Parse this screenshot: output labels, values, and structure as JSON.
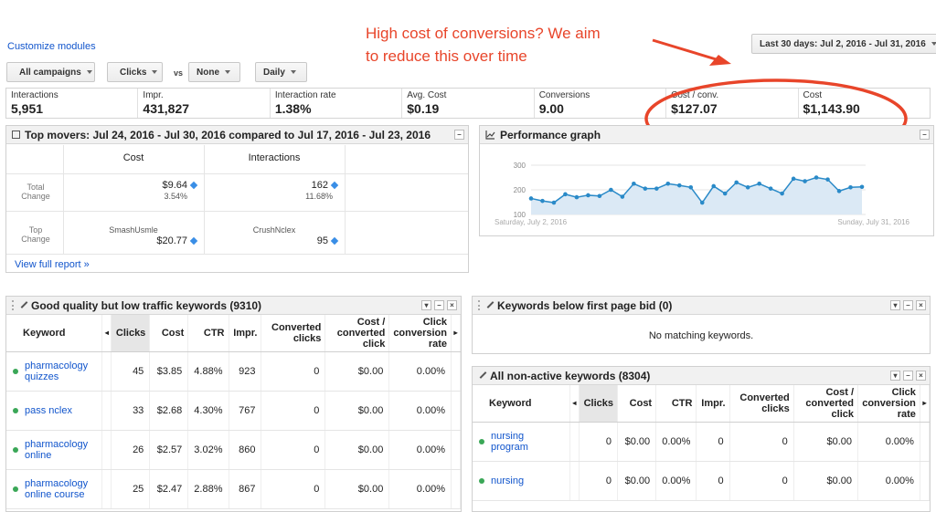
{
  "top": {
    "customize": "Customize modules",
    "date_range": "Last 30 days: Jul 2, 2016 - Jul 31, 2016",
    "campaigns": "All campaigns",
    "metric1": "Clicks",
    "vs": "vs",
    "metric2": "None",
    "interval": "Daily"
  },
  "annotation": {
    "line1": "High cost of conversions? We aim",
    "line2": "to reduce this over time",
    "color": "#e8452a"
  },
  "metrics": [
    {
      "label": "Interactions",
      "value": "5,951"
    },
    {
      "label": "Impr.",
      "value": "431,827"
    },
    {
      "label": "Interaction rate",
      "value": "1.38%"
    },
    {
      "label": "Avg. Cost",
      "value": "$0.19"
    },
    {
      "label": "Conversions",
      "value": "9.00"
    },
    {
      "label": "Cost / conv.",
      "value": "$127.07"
    },
    {
      "label": "Cost",
      "value": "$1,143.90"
    }
  ],
  "top_movers": {
    "title": "Top movers: Jul 24, 2016 - Jul 30, 2016 compared to Jul 17, 2016 - Jul 23, 2016",
    "col_cost": "Cost",
    "col_interactions": "Interactions",
    "total_change_label": "Total Change",
    "top_change_label": "Top Change",
    "cost_total": "$9.64",
    "cost_pct": "3.54%",
    "int_total": "162",
    "int_pct": "11.68%",
    "cost_top_name": "SmashUsmle",
    "cost_top_value": "$20.77",
    "int_top_name": "CrushNclex",
    "int_top_value": "95",
    "view_full": "View full report »"
  },
  "performance": {
    "title": "Performance graph",
    "start_label": "Saturday, July 2, 2016",
    "end_label": "Sunday, July 31, 2016"
  },
  "chart_data": {
    "type": "area",
    "ylim": [
      100,
      300
    ],
    "yticks": [
      "300",
      "200",
      "100"
    ],
    "values": [
      165,
      155,
      148,
      182,
      170,
      178,
      175,
      200,
      172,
      225,
      205,
      205,
      225,
      218,
      210,
      148,
      215,
      185,
      230,
      210,
      225,
      205,
      185,
      245,
      235,
      250,
      242,
      195,
      210,
      212
    ]
  },
  "good_quality": {
    "title": "Good quality but low traffic keywords (9310)",
    "headers": [
      "Keyword",
      "Clicks",
      "Cost",
      "CTR",
      "Impr.",
      "Converted clicks",
      "Cost / converted click",
      "Click conversion rate"
    ],
    "rows": [
      {
        "kw": "pharmacology quizzes",
        "clicks": "45",
        "cost": "$3.85",
        "ctr": "4.88%",
        "impr": "923",
        "conv": "0",
        "cpc": "$0.00",
        "rate": "0.00%"
      },
      {
        "kw": "pass nclex",
        "clicks": "33",
        "cost": "$2.68",
        "ctr": "4.30%",
        "impr": "767",
        "conv": "0",
        "cpc": "$0.00",
        "rate": "0.00%"
      },
      {
        "kw": "pharmacology online",
        "clicks": "26",
        "cost": "$2.57",
        "ctr": "3.02%",
        "impr": "860",
        "conv": "0",
        "cpc": "$0.00",
        "rate": "0.00%"
      },
      {
        "kw": "pharmacology online course",
        "clicks": "25",
        "cost": "$2.47",
        "ctr": "2.88%",
        "impr": "867",
        "conv": "0",
        "cpc": "$0.00",
        "rate": "0.00%"
      }
    ]
  },
  "below_bid": {
    "title": "Keywords below first page bid (0)",
    "empty": "No matching keywords."
  },
  "non_active": {
    "title": "All non-active keywords (8304)",
    "headers": [
      "Keyword",
      "Clicks",
      "Cost",
      "CTR",
      "Impr.",
      "Converted clicks",
      "Cost / converted click",
      "Click conversion rate"
    ],
    "rows": [
      {
        "kw": "nursing program",
        "clicks": "0",
        "cost": "$0.00",
        "ctr": "0.00%",
        "impr": "0",
        "conv": "0",
        "cpc": "$0.00",
        "rate": "0.00%"
      },
      {
        "kw": "nursing",
        "clicks": "0",
        "cost": "$0.00",
        "ctr": "0.00%",
        "impr": "0",
        "conv": "0",
        "cpc": "$0.00",
        "rate": "0.00%"
      }
    ]
  }
}
